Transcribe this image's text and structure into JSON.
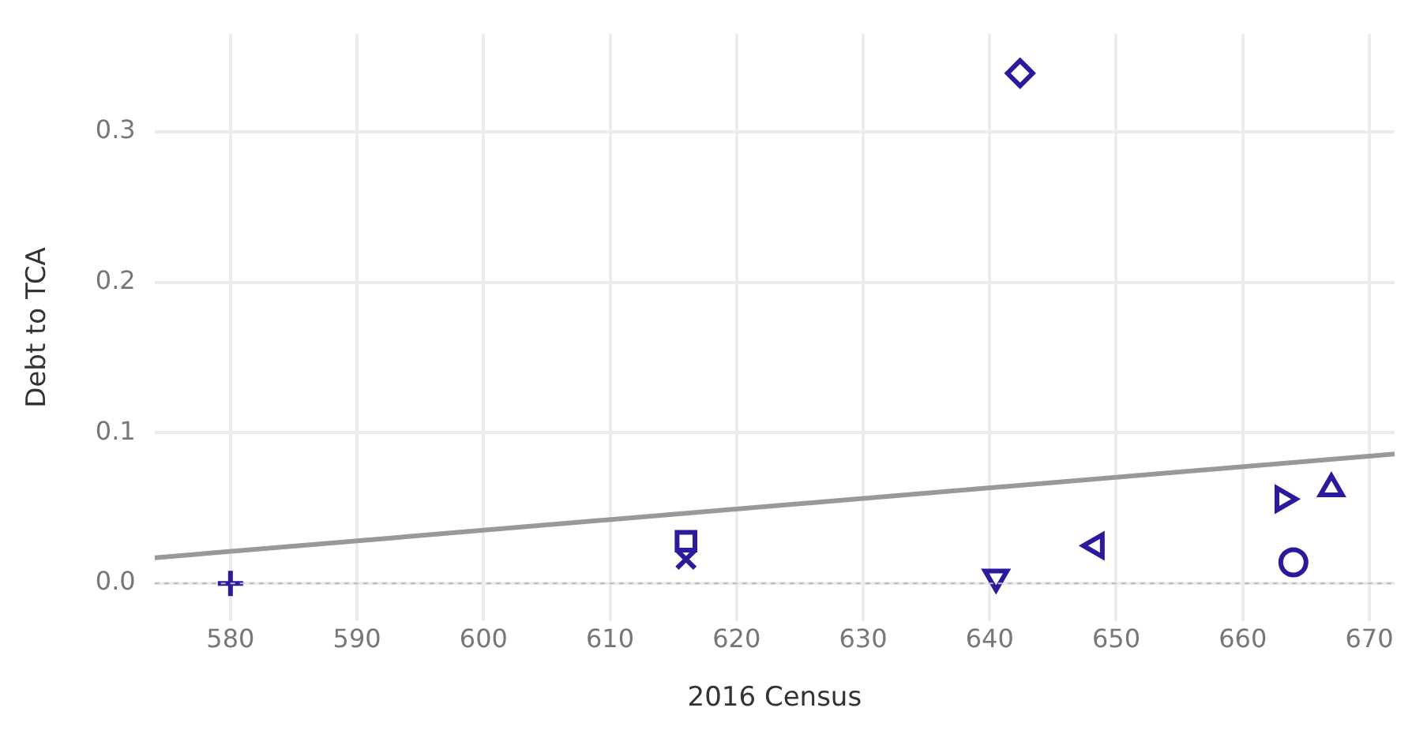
{
  "chart_data": {
    "type": "scatter",
    "xlabel": "2016 Census",
    "ylabel": "Debt to TCA",
    "grid": true,
    "legend": false,
    "xlim": [
      574,
      672
    ],
    "xticks": [
      580,
      590,
      600,
      610,
      620,
      630,
      640,
      650,
      660,
      670
    ],
    "ylim": [
      -0.025,
      0.365
    ],
    "yticks": [
      {
        "value": 0,
        "label": "0.0"
      },
      {
        "value": 0.1,
        "label": "0.1"
      },
      {
        "value": 0.2,
        "label": "0.2"
      },
      {
        "value": 0.3,
        "label": "0.3"
      }
    ],
    "ref_lines": [
      {
        "axis": "y",
        "value": 0,
        "color": "#bbbbbb",
        "line_style": "dotted"
      }
    ],
    "series": [
      {
        "marker": "cross",
        "color": "#2a1a9c",
        "x": [
          580
        ],
        "values": [
          0.0
        ]
      },
      {
        "marker": "square",
        "color": "#2a1a9c",
        "x": [
          616
        ],
        "values": [
          0.028
        ]
      },
      {
        "marker": "x",
        "color": "#2a1a9c",
        "x": [
          616
        ],
        "values": [
          0.016
        ]
      },
      {
        "marker": "triangle-down",
        "color": "#2a1a9c",
        "x": [
          640.5
        ],
        "values": [
          0.004
        ]
      },
      {
        "marker": "diamond",
        "color": "#2a1a9c",
        "x": [
          642.4
        ],
        "values": [
          0.339
        ]
      },
      {
        "marker": "triangle-left",
        "color": "#2a1a9c",
        "x": [
          648.4
        ],
        "values": [
          0.025
        ]
      },
      {
        "marker": "triangle-right",
        "color": "#2a1a9c",
        "x": [
          663.2
        ],
        "values": [
          0.056
        ]
      },
      {
        "marker": "circle",
        "color": "#2a1a9c",
        "x": [
          664
        ],
        "values": [
          0.014
        ]
      },
      {
        "marker": "triangle",
        "color": "#2a1a9c",
        "x": [
          667
        ],
        "values": [
          0.063
        ]
      },
      {
        "type": "line",
        "marker": "none",
        "line_style": "solid",
        "color": "#999999",
        "x": [
          574,
          672
        ],
        "values": [
          0.017,
          0.086
        ]
      }
    ]
  }
}
